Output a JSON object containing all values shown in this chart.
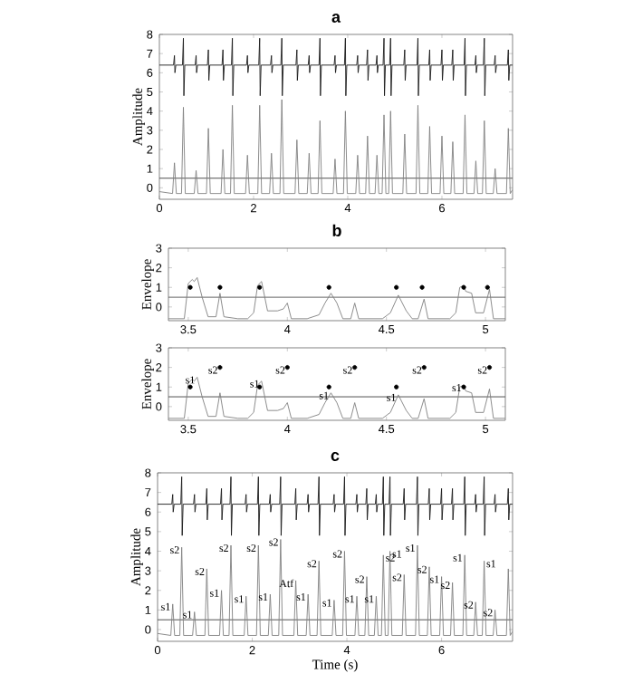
{
  "chart_data": [
    {
      "type": "line",
      "title": "a",
      "ylabel": "Amplitude",
      "xlim": [
        0,
        7.5
      ],
      "ylim": [
        -0.6,
        8
      ],
      "xticks": [
        0,
        2,
        4,
        6
      ],
      "yticks": [
        0,
        1,
        2,
        3,
        4,
        5,
        6,
        7,
        8
      ],
      "ref_lines": [
        {
          "axis": "y",
          "value": 0.5,
          "color": "#505050"
        }
      ],
      "series": [
        {
          "type": "line",
          "color": "#1a1a1a",
          "x": [
            0,
            0.3,
            0.32,
            0.33,
            0.35,
            0.49,
            0.51,
            0.52,
            0.54,
            0.76,
            0.78,
            0.79,
            0.81,
            1.02,
            1.04,
            1.05,
            1.07,
            1.33,
            1.35,
            1.36,
            1.38,
            1.53,
            1.55,
            1.56,
            1.58,
            1.85,
            1.87,
            1.88,
            1.9,
            2.11,
            2.13,
            2.14,
            2.16,
            2.36,
            2.38,
            2.39,
            2.41,
            2.58,
            2.6,
            2.61,
            2.63,
            2.9,
            2.92,
            2.93,
            2.95,
            3.16,
            3.18,
            3.19,
            3.21,
            3.39,
            3.41,
            3.42,
            3.44,
            3.71,
            3.73,
            3.74,
            3.76,
            3.93,
            3.95,
            3.96,
            3.98,
            4.19,
            4.21,
            4.22,
            4.24,
            4.4,
            4.42,
            4.43,
            4.45,
            4.6,
            4.62,
            4.63,
            4.65,
            4.75,
            4.77,
            4.78,
            4.8,
            4.89,
            4.91,
            4.92,
            4.94,
            5.19,
            5.21,
            5.22,
            5.24,
            5.47,
            5.49,
            5.5,
            5.52,
            5.72,
            5.74,
            5.75,
            5.77,
            5.98,
            6.0,
            6.01,
            6.03,
            6.21,
            6.23,
            6.24,
            6.26,
            6.47,
            6.49,
            6.5,
            6.52,
            6.7,
            6.72,
            6.73,
            6.75,
            6.88,
            6.9,
            6.91,
            6.93,
            7.11,
            7.13,
            7.14,
            7.16,
            7.39,
            7.41,
            7.42,
            7.44,
            7.5
          ],
          "values": [
            6.4,
            6.4,
            6.9,
            6.0,
            6.4,
            6.4,
            7.8,
            4.8,
            6.4,
            6.4,
            6.9,
            6.0,
            6.4,
            6.4,
            7.2,
            5.6,
            6.4,
            6.4,
            7.2,
            5.6,
            6.4,
            6.4,
            7.8,
            4.8,
            6.4,
            6.4,
            6.9,
            6.0,
            6.4,
            6.4,
            7.8,
            4.8,
            6.4,
            6.4,
            6.9,
            6.0,
            6.4,
            6.4,
            7.8,
            4.8,
            6.4,
            6.4,
            7.2,
            5.6,
            6.4,
            6.4,
            6.9,
            6.0,
            6.4,
            6.4,
            7.8,
            4.8,
            6.4,
            6.4,
            6.9,
            6.0,
            6.4,
            6.4,
            7.8,
            4.8,
            6.4,
            6.4,
            6.9,
            6.0,
            6.4,
            6.4,
            7.2,
            5.6,
            6.4,
            6.4,
            6.9,
            6.0,
            6.4,
            6.4,
            7.8,
            4.8,
            6.4,
            6.4,
            7.8,
            4.8,
            6.4,
            6.4,
            7.2,
            5.6,
            6.4,
            6.4,
            7.8,
            4.8,
            6.4,
            6.4,
            7.2,
            5.6,
            6.4,
            6.4,
            7.2,
            5.6,
            6.4,
            6.4,
            7.2,
            5.6,
            6.4,
            6.4,
            7.8,
            4.8,
            6.4,
            6.4,
            6.9,
            6.0,
            6.4,
            6.4,
            7.8,
            4.8,
            6.4,
            6.4,
            6.9,
            6.0,
            6.4,
            6.4,
            7.2,
            5.6,
            6.4,
            6.4
          ]
        },
        {
          "type": "line",
          "color": "#808080",
          "x": [
            0,
            0.28,
            0.32,
            0.36,
            0.47,
            0.51,
            0.55,
            0.74,
            0.78,
            0.82,
            1.0,
            1.04,
            1.08,
            1.31,
            1.35,
            1.39,
            1.51,
            1.55,
            1.59,
            1.83,
            1.87,
            1.91,
            2.09,
            2.13,
            2.17,
            2.34,
            2.38,
            2.42,
            2.56,
            2.6,
            2.64,
            2.88,
            2.92,
            2.96,
            3.14,
            3.18,
            3.22,
            3.37,
            3.41,
            3.45,
            3.69,
            3.73,
            3.77,
            3.91,
            3.95,
            3.99,
            4.17,
            4.21,
            4.25,
            4.38,
            4.42,
            4.46,
            4.58,
            4.62,
            4.66,
            4.73,
            4.77,
            4.81,
            4.87,
            4.91,
            4.95,
            5.17,
            5.21,
            5.25,
            5.45,
            5.49,
            5.53,
            5.7,
            5.74,
            5.78,
            5.96,
            6.0,
            6.04,
            6.19,
            6.23,
            6.27,
            6.45,
            6.49,
            6.53,
            6.68,
            6.72,
            6.76,
            6.86,
            6.9,
            6.94,
            7.09,
            7.13,
            7.17,
            7.37,
            7.41,
            7.45,
            7.5
          ],
          "values": [
            -0.2,
            -0.3,
            1.3,
            -0.3,
            -0.3,
            4.2,
            -0.3,
            -0.3,
            0.9,
            -0.3,
            -0.3,
            3.1,
            -0.3,
            -0.3,
            2.0,
            -0.3,
            -0.3,
            4.3,
            -0.3,
            -0.3,
            1.7,
            -0.3,
            -0.3,
            4.3,
            -0.3,
            -0.3,
            1.8,
            -0.3,
            -0.3,
            4.6,
            -0.3,
            -0.3,
            2.5,
            -0.3,
            -0.3,
            1.8,
            -0.3,
            -0.3,
            3.5,
            -0.3,
            -0.3,
            1.5,
            -0.3,
            -0.3,
            4.0,
            -0.3,
            -0.3,
            1.7,
            -0.3,
            -0.3,
            2.7,
            -0.3,
            -0.3,
            1.7,
            -0.3,
            -0.3,
            3.8,
            -0.3,
            -0.3,
            4.0,
            -0.3,
            -0.3,
            2.8,
            -0.3,
            -0.3,
            4.3,
            -0.3,
            -0.3,
            3.2,
            -0.3,
            -0.3,
            2.7,
            -0.3,
            -0.3,
            2.4,
            -0.3,
            -0.3,
            3.8,
            -0.3,
            -0.3,
            1.4,
            -0.3,
            -0.3,
            3.5,
            -0.3,
            -0.3,
            1.0,
            -0.3,
            -0.3,
            3.1,
            -0.3,
            -0.1
          ]
        }
      ]
    },
    {
      "type": "line",
      "title": "b",
      "ylabel": "Envelope",
      "xlim": [
        3.4,
        5.1
      ],
      "ylim": [
        -0.7,
        3
      ],
      "xticks": [
        3.5,
        4,
        4.5,
        5
      ],
      "yticks": [
        0,
        1,
        2,
        3
      ],
      "ref_lines": [
        {
          "axis": "y",
          "value": 0.5,
          "color": "#505050"
        }
      ],
      "series": [
        {
          "type": "line",
          "color": "#808080",
          "x": [
            3.4,
            3.48,
            3.5,
            3.52,
            3.53,
            3.545,
            3.57,
            3.6,
            3.64,
            3.66,
            3.68,
            3.75,
            3.8,
            3.83,
            3.85,
            3.87,
            3.9,
            3.95,
            3.98,
            4.0,
            4.02,
            4.1,
            4.16,
            4.19,
            4.22,
            4.25,
            4.28,
            4.32,
            4.34,
            4.36,
            4.48,
            4.52,
            4.56,
            4.6,
            4.63,
            4.66,
            4.69,
            4.71,
            4.82,
            4.85,
            4.87,
            4.89,
            4.9,
            4.93,
            4.95,
            4.99,
            5.02,
            5.04,
            5.1
          ],
          "values": [
            -0.6,
            -0.6,
            1.2,
            1.4,
            1.3,
            1.5,
            0.5,
            -0.5,
            -0.5,
            0.7,
            -0.5,
            -0.6,
            -0.6,
            -0.3,
            1.1,
            1.3,
            -0.2,
            -0.2,
            -0.1,
            0.2,
            -0.6,
            -0.6,
            -0.4,
            0.2,
            0.7,
            0.2,
            -0.6,
            -0.6,
            0.2,
            -0.6,
            -0.6,
            -0.3,
            0.6,
            -0.2,
            -0.6,
            -0.6,
            0.4,
            -0.6,
            -0.6,
            -0.3,
            1.0,
            1.1,
            0.8,
            0.7,
            -0.3,
            -0.3,
            0.9,
            -0.6,
            -0.6
          ]
        },
        {
          "type": "scatter",
          "color": "#000000",
          "x": [
            3.51,
            3.66,
            3.86,
            4.21,
            4.55,
            4.68,
            4.89,
            5.01
          ],
          "values": [
            1,
            1,
            1,
            1,
            1,
            1,
            1,
            1
          ]
        }
      ]
    },
    {
      "type": "line",
      "ylabel": "Envelope",
      "xlim": [
        3.4,
        5.1
      ],
      "ylim": [
        -0.7,
        3
      ],
      "xticks": [
        3.5,
        4,
        4.5,
        5
      ],
      "yticks": [
        0,
        1,
        2,
        3
      ],
      "ref_lines": [
        {
          "axis": "y",
          "value": 0.5,
          "color": "#505050"
        }
      ],
      "annotations": [
        {
          "text": "s1",
          "x": 3.545,
          "y": 1.5
        },
        {
          "text": "s2",
          "x": 3.66,
          "y": 2
        },
        {
          "text": "s1",
          "x": 3.87,
          "y": 1.3
        },
        {
          "text": "s2",
          "x": 4.0,
          "y": 2
        },
        {
          "text": "s1",
          "x": 4.22,
          "y": 0.7
        },
        {
          "text": "s2",
          "x": 4.34,
          "y": 2
        },
        {
          "text": "s1",
          "x": 4.56,
          "y": 0.6
        },
        {
          "text": "s2",
          "x": 4.69,
          "y": 2
        },
        {
          "text": "s1",
          "x": 4.89,
          "y": 1.1
        },
        {
          "text": "s2",
          "x": 5.02,
          "y": 2
        }
      ],
      "series": [
        {
          "type": "line",
          "color": "#808080",
          "x": [
            3.4,
            3.48,
            3.5,
            3.52,
            3.53,
            3.545,
            3.57,
            3.6,
            3.64,
            3.66,
            3.68,
            3.75,
            3.8,
            3.83,
            3.85,
            3.87,
            3.9,
            3.95,
            3.98,
            4.0,
            4.02,
            4.1,
            4.16,
            4.19,
            4.22,
            4.25,
            4.28,
            4.32,
            4.34,
            4.36,
            4.48,
            4.52,
            4.56,
            4.6,
            4.63,
            4.66,
            4.69,
            4.71,
            4.82,
            4.85,
            4.87,
            4.89,
            4.9,
            4.93,
            4.95,
            4.99,
            5.02,
            5.04,
            5.1
          ],
          "values": [
            -0.6,
            -0.6,
            1.2,
            1.4,
            1.3,
            1.5,
            0.5,
            -0.5,
            -0.5,
            0.7,
            -0.5,
            -0.6,
            -0.6,
            -0.3,
            1.1,
            1.3,
            -0.2,
            -0.2,
            -0.1,
            0.2,
            -0.6,
            -0.6,
            -0.4,
            0.2,
            0.7,
            0.2,
            -0.6,
            -0.6,
            0.2,
            -0.6,
            -0.6,
            -0.3,
            0.6,
            -0.2,
            -0.6,
            -0.6,
            0.4,
            -0.6,
            -0.6,
            -0.3,
            1.0,
            1.1,
            0.8,
            0.7,
            -0.3,
            -0.3,
            0.9,
            -0.6,
            -0.6
          ]
        },
        {
          "type": "scatter",
          "color": "#000000",
          "x": [
            3.51,
            3.86,
            4.21,
            4.55,
            4.89
          ],
          "values": [
            1,
            1,
            1,
            1,
            1
          ]
        },
        {
          "type": "scatter",
          "color": "#000000",
          "x": [
            3.66,
            4.0,
            4.34,
            4.69,
            5.02
          ],
          "values": [
            2,
            2,
            2,
            2,
            2
          ]
        }
      ]
    },
    {
      "type": "line",
      "title": "c",
      "xlabel": "Time (s)",
      "ylabel": "Amplitude",
      "xlim": [
        0,
        7.5
      ],
      "ylim": [
        -0.6,
        8
      ],
      "xticks": [
        0,
        2,
        4,
        6
      ],
      "yticks": [
        0,
        1,
        2,
        3,
        4,
        5,
        6,
        7,
        8
      ],
      "ref_lines": [
        {
          "axis": "y",
          "value": 0.5,
          "color": "#505050"
        }
      ],
      "annotations": [
        {
          "text": "s1",
          "x": 0.32,
          "y": 1.3
        },
        {
          "text": "s2",
          "x": 0.51,
          "y": 4.2
        },
        {
          "text": "s1",
          "x": 0.78,
          "y": 0.9
        },
        {
          "text": "s2",
          "x": 1.04,
          "y": 3.1
        },
        {
          "text": "s1",
          "x": 1.35,
          "y": 2.0
        },
        {
          "text": "s2",
          "x": 1.55,
          "y": 4.3
        },
        {
          "text": "s1",
          "x": 1.87,
          "y": 1.7
        },
        {
          "text": "s2",
          "x": 2.13,
          "y": 4.3
        },
        {
          "text": "s1",
          "x": 2.38,
          "y": 1.8
        },
        {
          "text": "s2",
          "x": 2.6,
          "y": 4.6
        },
        {
          "text": "Atf",
          "x": 2.92,
          "y": 2.5
        },
        {
          "text": "s1",
          "x": 3.18,
          "y": 1.8
        },
        {
          "text": "s2",
          "x": 3.41,
          "y": 3.5
        },
        {
          "text": "s1",
          "x": 3.73,
          "y": 1.5
        },
        {
          "text": "s2",
          "x": 3.95,
          "y": 4.0
        },
        {
          "text": "s1",
          "x": 4.21,
          "y": 1.7
        },
        {
          "text": "s2",
          "x": 4.42,
          "y": 2.7
        },
        {
          "text": "s1",
          "x": 4.62,
          "y": 1.7
        },
        {
          "text": "s2",
          "x": 4.77,
          "y": 3.8
        },
        {
          "text": "s1",
          "x": 4.91,
          "y": 4.0
        },
        {
          "text": "s2",
          "x": 5.21,
          "y": 2.8
        },
        {
          "text": "s1",
          "x": 5.49,
          "y": 4.3
        },
        {
          "text": "s2",
          "x": 5.74,
          "y": 3.2
        },
        {
          "text": "s1",
          "x": 6.0,
          "y": 2.7
        },
        {
          "text": "s2",
          "x": 6.23,
          "y": 2.4
        },
        {
          "text": "s1",
          "x": 6.49,
          "y": 3.8
        },
        {
          "text": "s2",
          "x": 6.72,
          "y": 1.4
        },
        {
          "text": "s1",
          "x": 6.9,
          "y": 3.5
        },
        {
          "text": "s2",
          "x": 7.13,
          "y": 1.0
        }
      ],
      "series": [
        {
          "type": "line",
          "color": "#1a1a1a",
          "x": [
            0,
            0.3,
            0.32,
            0.33,
            0.35,
            0.49,
            0.51,
            0.52,
            0.54,
            0.76,
            0.78,
            0.79,
            0.81,
            1.02,
            1.04,
            1.05,
            1.07,
            1.33,
            1.35,
            1.36,
            1.38,
            1.53,
            1.55,
            1.56,
            1.58,
            1.85,
            1.87,
            1.88,
            1.9,
            2.11,
            2.13,
            2.14,
            2.16,
            2.36,
            2.38,
            2.39,
            2.41,
            2.58,
            2.6,
            2.61,
            2.63,
            2.9,
            2.92,
            2.93,
            2.95,
            3.16,
            3.18,
            3.19,
            3.21,
            3.39,
            3.41,
            3.42,
            3.44,
            3.71,
            3.73,
            3.74,
            3.76,
            3.93,
            3.95,
            3.96,
            3.98,
            4.19,
            4.21,
            4.22,
            4.24,
            4.4,
            4.42,
            4.43,
            4.45,
            4.6,
            4.62,
            4.63,
            4.65,
            4.75,
            4.77,
            4.78,
            4.8,
            4.89,
            4.91,
            4.92,
            4.94,
            5.19,
            5.21,
            5.22,
            5.24,
            5.47,
            5.49,
            5.5,
            5.52,
            5.72,
            5.74,
            5.75,
            5.77,
            5.98,
            6.0,
            6.01,
            6.03,
            6.21,
            6.23,
            6.24,
            6.26,
            6.47,
            6.49,
            6.5,
            6.52,
            6.7,
            6.72,
            6.73,
            6.75,
            6.88,
            6.9,
            6.91,
            6.93,
            7.11,
            7.13,
            7.14,
            7.16,
            7.39,
            7.41,
            7.42,
            7.44,
            7.5
          ],
          "values": [
            6.4,
            6.4,
            6.9,
            6.0,
            6.4,
            6.4,
            7.8,
            4.8,
            6.4,
            6.4,
            6.9,
            6.0,
            6.4,
            6.4,
            7.2,
            5.6,
            6.4,
            6.4,
            7.2,
            5.6,
            6.4,
            6.4,
            7.8,
            4.8,
            6.4,
            6.4,
            6.9,
            6.0,
            6.4,
            6.4,
            7.8,
            4.8,
            6.4,
            6.4,
            6.9,
            6.0,
            6.4,
            6.4,
            7.8,
            4.8,
            6.4,
            6.4,
            7.2,
            5.6,
            6.4,
            6.4,
            6.9,
            6.0,
            6.4,
            6.4,
            7.8,
            4.8,
            6.4,
            6.4,
            6.9,
            6.0,
            6.4,
            6.4,
            7.8,
            4.8,
            6.4,
            6.4,
            6.9,
            6.0,
            6.4,
            6.4,
            7.2,
            5.6,
            6.4,
            6.4,
            6.9,
            6.0,
            6.4,
            6.4,
            7.8,
            4.8,
            6.4,
            6.4,
            7.8,
            4.8,
            6.4,
            6.4,
            7.2,
            5.6,
            6.4,
            6.4,
            7.8,
            4.8,
            6.4,
            6.4,
            7.2,
            5.6,
            6.4,
            6.4,
            7.2,
            5.6,
            6.4,
            6.4,
            7.2,
            5.6,
            6.4,
            6.4,
            7.8,
            4.8,
            6.4,
            6.4,
            6.9,
            6.0,
            6.4,
            6.4,
            7.8,
            4.8,
            6.4,
            6.4,
            6.9,
            6.0,
            6.4,
            6.4,
            7.2,
            5.6,
            6.4,
            6.4
          ]
        },
        {
          "type": "line",
          "color": "#808080",
          "x": [
            0,
            0.28,
            0.32,
            0.36,
            0.47,
            0.51,
            0.55,
            0.74,
            0.78,
            0.82,
            1.0,
            1.04,
            1.08,
            1.31,
            1.35,
            1.39,
            1.51,
            1.55,
            1.59,
            1.83,
            1.87,
            1.91,
            2.09,
            2.13,
            2.17,
            2.34,
            2.38,
            2.42,
            2.56,
            2.6,
            2.64,
            2.88,
            2.92,
            2.96,
            3.14,
            3.18,
            3.22,
            3.37,
            3.41,
            3.45,
            3.69,
            3.73,
            3.77,
            3.91,
            3.95,
            3.99,
            4.17,
            4.21,
            4.25,
            4.38,
            4.42,
            4.46,
            4.58,
            4.62,
            4.66,
            4.73,
            4.77,
            4.81,
            4.87,
            4.91,
            4.95,
            5.17,
            5.21,
            5.25,
            5.45,
            5.49,
            5.53,
            5.7,
            5.74,
            5.78,
            5.96,
            6.0,
            6.04,
            6.19,
            6.23,
            6.27,
            6.45,
            6.49,
            6.53,
            6.68,
            6.72,
            6.76,
            6.86,
            6.9,
            6.94,
            7.09,
            7.13,
            7.17,
            7.37,
            7.41,
            7.45,
            7.5
          ],
          "values": [
            -0.2,
            -0.3,
            1.3,
            -0.3,
            -0.3,
            4.2,
            -0.3,
            -0.3,
            0.9,
            -0.3,
            -0.3,
            3.1,
            -0.3,
            -0.3,
            2.0,
            -0.3,
            -0.3,
            4.3,
            -0.3,
            -0.3,
            1.7,
            -0.3,
            -0.3,
            4.3,
            -0.3,
            -0.3,
            1.8,
            -0.3,
            -0.3,
            4.6,
            -0.3,
            -0.3,
            2.5,
            -0.3,
            -0.3,
            1.8,
            -0.3,
            -0.3,
            3.5,
            -0.3,
            -0.3,
            1.5,
            -0.3,
            -0.3,
            4.0,
            -0.3,
            -0.3,
            1.7,
            -0.3,
            -0.3,
            2.7,
            -0.3,
            -0.3,
            1.7,
            -0.3,
            -0.3,
            3.8,
            -0.3,
            -0.3,
            4.0,
            -0.3,
            -0.3,
            2.8,
            -0.3,
            -0.3,
            4.3,
            -0.3,
            -0.3,
            3.2,
            -0.3,
            -0.3,
            2.7,
            -0.3,
            -0.3,
            2.4,
            -0.3,
            -0.3,
            3.8,
            -0.3,
            -0.3,
            1.4,
            -0.3,
            -0.3,
            3.5,
            -0.3,
            -0.3,
            1.0,
            -0.3,
            -0.3,
            3.1,
            -0.3,
            -0.1
          ]
        }
      ]
    }
  ]
}
